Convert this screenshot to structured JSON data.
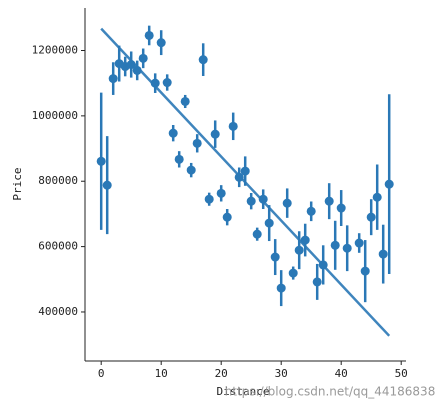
{
  "chart_data": {
    "type": "regplot",
    "x_label": "Distance",
    "y_label": "Price",
    "x": [
      0,
      1,
      2,
      3,
      4,
      5,
      6,
      7,
      8,
      9,
      10,
      11,
      12,
      13,
      14,
      15,
      16,
      17,
      18,
      19,
      20,
      21,
      22,
      23,
      24,
      25,
      26,
      27,
      28,
      29,
      30,
      31,
      32,
      33,
      34,
      35,
      36,
      37,
      38,
      39,
      40,
      41,
      43,
      44,
      45,
      46,
      47,
      48
    ],
    "values": [
      861000,
      788000,
      1114000,
      1160000,
      1151000,
      1157000,
      1139000,
      1176000,
      1246000,
      1100000,
      1224000,
      1102000,
      947000,
      867000,
      1044000,
      834000,
      916000,
      1172000,
      745000,
      944000,
      763000,
      690000,
      968000,
      812000,
      831000,
      739000,
      638000,
      745000,
      672000,
      568000,
      473000,
      733000,
      519000,
      589000,
      620000,
      708000,
      492000,
      544000,
      739000,
      604000,
      718000,
      595000,
      611000,
      525000,
      690000,
      751000,
      577000,
      791000
    ],
    "errors": [
      210000,
      150000,
      50000,
      55000,
      30000,
      40000,
      30000,
      30000,
      30000,
      30000,
      38000,
      25000,
      25000,
      25000,
      20000,
      22000,
      28000,
      50000,
      20000,
      42000,
      25000,
      25000,
      42000,
      30000,
      45000,
      25000,
      20000,
      30000,
      55000,
      55000,
      55000,
      45000,
      20000,
      58000,
      50000,
      30000,
      55000,
      60000,
      55000,
      75000,
      55000,
      70000,
      30000,
      95000,
      55000,
      100000,
      90000,
      275000
    ],
    "color": "#2a78b6",
    "fit": {
      "x": [
        0,
        48
      ],
      "values": [
        1267000,
        327000
      ]
    },
    "xlim": [
      -2.7,
      50.8
    ],
    "ylim": [
      250000,
      1330000
    ],
    "xticks": [
      0,
      10,
      20,
      30,
      40,
      50
    ],
    "yticks": [
      400000,
      600000,
      800000,
      1000000,
      1200000
    ],
    "watermark": "https://blog.csdn.net/qq_44186838"
  }
}
